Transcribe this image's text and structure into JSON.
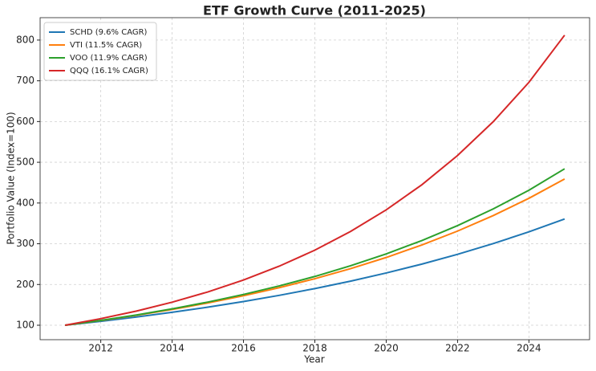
{
  "chart_data": {
    "type": "line",
    "title": "ETF Growth Curve (2011-2025)",
    "x_label": "Year",
    "y_label": "Portfolio Value (Index=100)",
    "x": [
      2011,
      2012,
      2013,
      2014,
      2015,
      2016,
      2017,
      2018,
      2019,
      2020,
      2021,
      2022,
      2023,
      2024,
      2025
    ],
    "series": [
      {
        "name": "SCHD (9.6% CAGR)",
        "color": "#1f77b4",
        "values": [
          100,
          109.6,
          120.1,
          131.7,
          144.3,
          158.1,
          173.3,
          190.0,
          208.2,
          228.2,
          250.1,
          274.1,
          300.4,
          329.2,
          360.8
        ]
      },
      {
        "name": "VTI (11.5% CAGR)",
        "color": "#ff7f0e",
        "values": [
          100,
          111.5,
          124.3,
          138.6,
          154.6,
          172.3,
          192.1,
          214.2,
          238.9,
          266.3,
          297.0,
          331.1,
          369.2,
          411.6,
          459.0
        ]
      },
      {
        "name": "VOO (11.9% CAGR)",
        "color": "#2ca02c",
        "values": [
          100,
          111.9,
          125.2,
          140.1,
          156.8,
          175.5,
          196.4,
          219.7,
          245.9,
          275.1,
          307.9,
          344.5,
          385.5,
          431.4,
          484.0
        ]
      },
      {
        "name": "QQQ (16.1% CAGR)",
        "color": "#d62728",
        "values": [
          100,
          116.1,
          134.8,
          156.5,
          181.7,
          210.9,
          244.9,
          284.3,
          330.1,
          383.2,
          444.9,
          516.6,
          599.7,
          696.3,
          812.0
        ]
      }
    ],
    "xlim": [
      2010.3,
      2025.7
    ],
    "xticks": [
      2012,
      2014,
      2016,
      2018,
      2020,
      2022,
      2024
    ],
    "ylim": [
      64.5,
      855
    ],
    "yticks": [
      100,
      200,
      300,
      400,
      500,
      600,
      700,
      800
    ],
    "grid": true,
    "legend": "upper-left"
  }
}
